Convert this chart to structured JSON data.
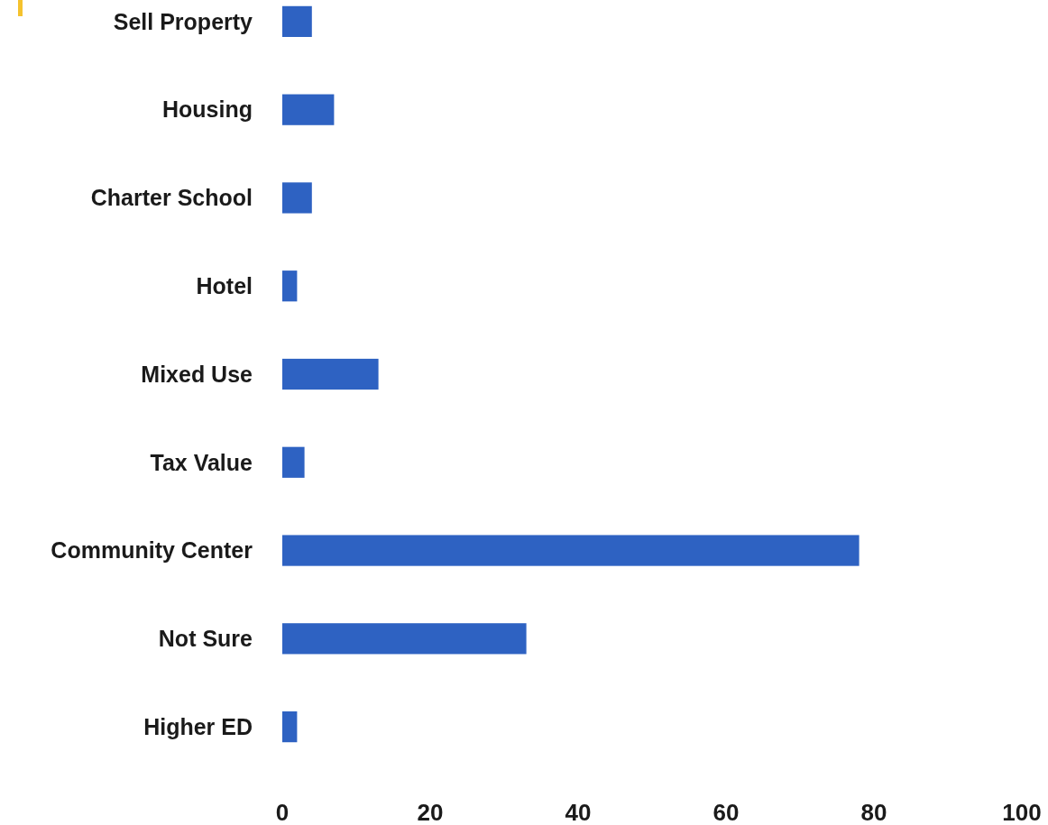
{
  "chart_data": {
    "type": "bar",
    "orientation": "horizontal",
    "categories": [
      "Sell Property",
      "Housing",
      "Charter School",
      "Hotel",
      "Mixed Use",
      "Tax Value",
      "Community Center",
      "Not Sure",
      "Higher ED"
    ],
    "values": [
      4,
      7,
      4,
      2,
      13,
      3,
      78,
      33,
      2
    ],
    "color": "#2e62c2",
    "xlim": [
      0,
      100
    ],
    "xticks": [
      0,
      20,
      40,
      60,
      80,
      100
    ],
    "grid": false
  }
}
